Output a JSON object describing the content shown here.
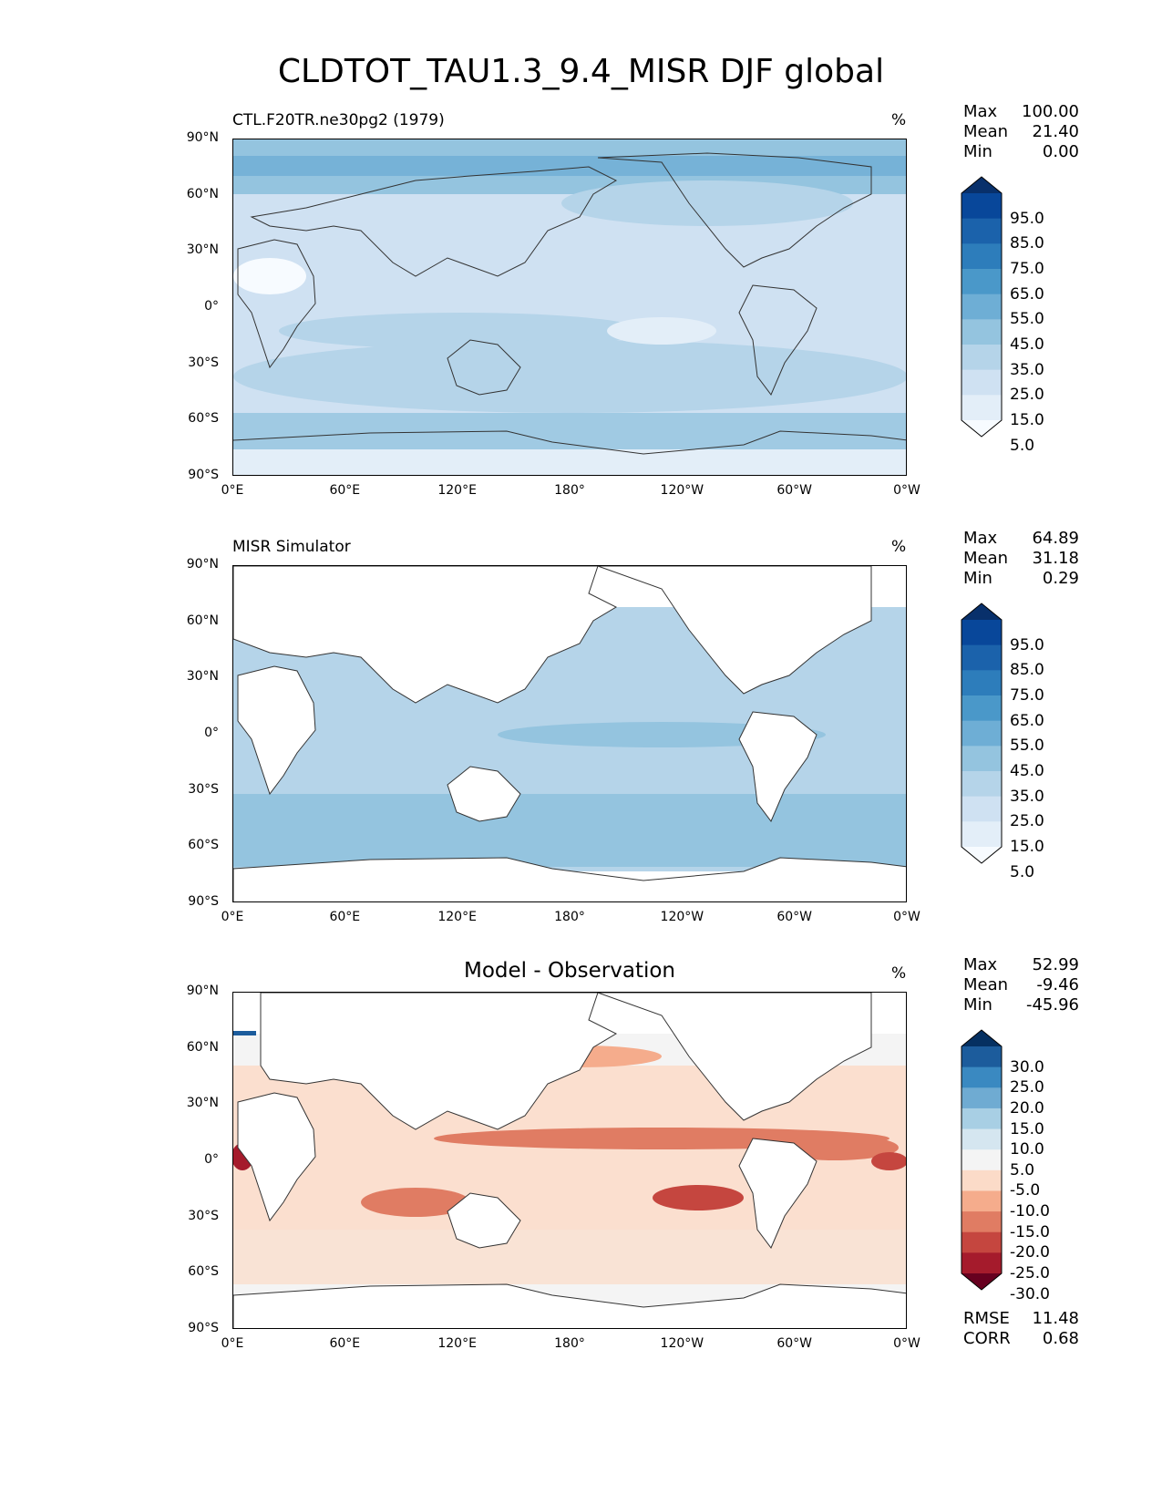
{
  "title": "CLDTOT_TAU1.3_9.4_MISR DJF global",
  "axes": {
    "lat_labels": [
      "90°N",
      "60°N",
      "30°N",
      "0°",
      "30°S",
      "60°S",
      "90°S"
    ],
    "lon_labels": [
      "0°E",
      "60°E",
      "120°E",
      "180°",
      "120°W",
      "60°W",
      "0°W"
    ]
  },
  "panels": [
    {
      "title": "CTL.F20TR.ne30pg2 (1979)",
      "units": "%",
      "stats": [
        {
          "label": "Max",
          "value": "100.00"
        },
        {
          "label": "Mean",
          "value": "21.40"
        },
        {
          "label": "Min",
          "value": "0.00"
        }
      ],
      "colorbar": {
        "labels": [
          "95.0",
          "85.0",
          "75.0",
          "65.0",
          "55.0",
          "45.0",
          "35.0",
          "25.0",
          "15.0",
          "5.0"
        ],
        "colors": [
          "#08306b",
          "#08479a",
          "#1b62ab",
          "#2d7dbb",
          "#4a98c9",
          "#6eaed5",
          "#94c4df",
          "#b5d4e9",
          "#cfe1f2",
          "#e3eef8",
          "#f7fbff"
        ]
      }
    },
    {
      "title": "MISR Simulator",
      "units": "%",
      "stats": [
        {
          "label": "Max",
          "value": "64.89"
        },
        {
          "label": "Mean",
          "value": "31.18"
        },
        {
          "label": "Min",
          "value": "0.29"
        }
      ],
      "colorbar": {
        "labels": [
          "95.0",
          "85.0",
          "75.0",
          "65.0",
          "55.0",
          "45.0",
          "35.0",
          "25.0",
          "15.0",
          "5.0"
        ],
        "colors": [
          "#08306b",
          "#08479a",
          "#1b62ab",
          "#2d7dbb",
          "#4a98c9",
          "#6eaed5",
          "#94c4df",
          "#b5d4e9",
          "#cfe1f2",
          "#e3eef8",
          "#f7fbff"
        ]
      }
    },
    {
      "title": "Model - Observation",
      "units": "%",
      "stats": [
        {
          "label": "Max",
          "value": "52.99"
        },
        {
          "label": "Mean",
          "value": "-9.46"
        },
        {
          "label": "Min",
          "value": "-45.96"
        }
      ],
      "footer_stats": [
        {
          "label": "RMSE",
          "value": "11.48"
        },
        {
          "label": "CORR",
          "value": "0.68"
        }
      ],
      "colorbar": {
        "labels": [
          "30.0",
          "25.0",
          "20.0",
          "15.0",
          "10.0",
          "5.0",
          "-5.0",
          "-10.0",
          "-15.0",
          "-20.0",
          "-25.0",
          "-30.0"
        ],
        "colors": [
          "#053061",
          "#1c5c9c",
          "#3a89c1",
          "#6fabd2",
          "#a8cfe4",
          "#d5e6f0",
          "#f4f4f4",
          "#fbdbc8",
          "#f5ac8c",
          "#e07c63",
          "#c5463f",
          "#a51b2c",
          "#67001f"
        ]
      }
    }
  ],
  "colors": {
    "land": "#ffffff",
    "coast": "#333333"
  }
}
